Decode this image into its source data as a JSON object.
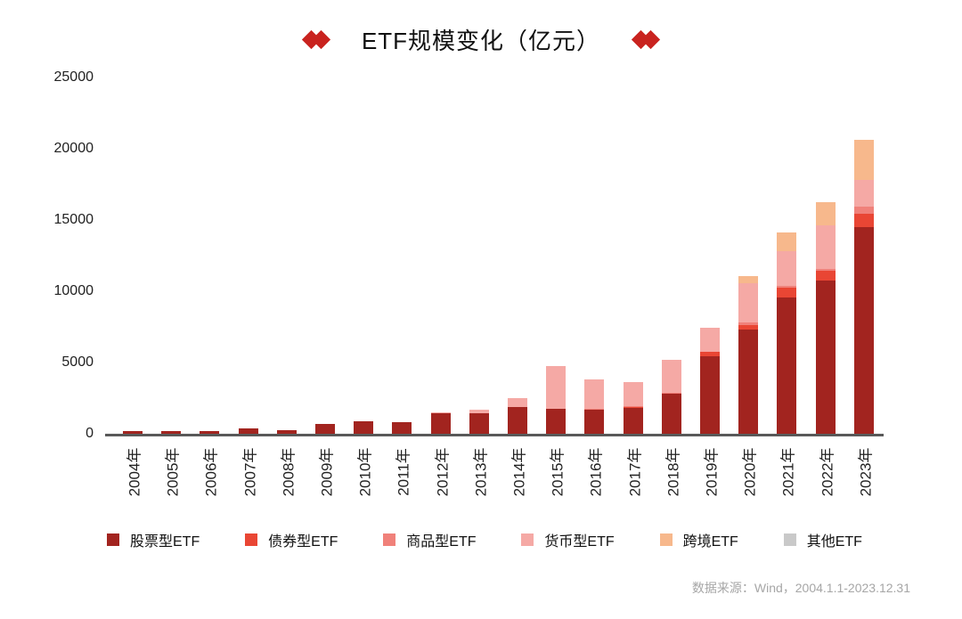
{
  "title": {
    "text": "ETF规模变化（亿元）"
  },
  "colors": {
    "diamond_accent": "#c9231f",
    "axis_line": "#595959",
    "tick_text": "#222222",
    "footer_text": "#a6a6a6",
    "background": "#ffffff"
  },
  "chart_data": {
    "type": "bar",
    "stacked": true,
    "title": "ETF规模变化（亿元）",
    "unit": "亿元",
    "xlabel": "",
    "ylabel": "",
    "ylim": [
      0,
      25000
    ],
    "yticks": [
      0,
      5000,
      10000,
      15000,
      20000,
      25000
    ],
    "grid": false,
    "legend_position": "bottom",
    "categories": [
      "2004年",
      "2005年",
      "2006年",
      "2007年",
      "2008年",
      "2009年",
      "2010年",
      "2011年",
      "2012年",
      "2013年",
      "2014年",
      "2015年",
      "2016年",
      "2017年",
      "2018年",
      "2019年",
      "2020年",
      "2021年",
      "2022年",
      "2023年"
    ],
    "series": [
      {
        "name": "股票型ETF",
        "color": "#a2241f",
        "values": [
          170,
          210,
          170,
          395,
          250,
          665,
          850,
          800,
          1450,
          1450,
          1900,
          1750,
          1750,
          1875,
          2810,
          5440,
          7310,
          9560,
          10750,
          14500
        ]
      },
      {
        "name": "债券型ETF",
        "color": "#e94634",
        "values": [
          0,
          0,
          0,
          0,
          0,
          0,
          0,
          0,
          0,
          0,
          0,
          0,
          0,
          30,
          60,
          310,
          300,
          690,
          690,
          940
        ]
      },
      {
        "name": "商品型ETF",
        "color": "#f0817a",
        "values": [
          0,
          0,
          0,
          0,
          0,
          0,
          0,
          0,
          0,
          0,
          0,
          0,
          30,
          30,
          30,
          0,
          200,
          100,
          100,
          500
        ]
      },
      {
        "name": "货币型ETF",
        "color": "#f5a9a5",
        "values": [
          0,
          0,
          0,
          0,
          0,
          0,
          0,
          0,
          50,
          250,
          600,
          3000,
          2030,
          1720,
          2290,
          1690,
          2750,
          2460,
          3090,
          1875
        ]
      },
      {
        "name": "跨境ETF",
        "color": "#f7b88c",
        "values": [
          0,
          0,
          0,
          0,
          0,
          0,
          0,
          0,
          0,
          0,
          0,
          0,
          0,
          0,
          0,
          0,
          500,
          1310,
          1625,
          2810
        ]
      },
      {
        "name": "其他ETF",
        "color": "#c9c9c9",
        "values": [
          0,
          0,
          0,
          0,
          0,
          0,
          0,
          0,
          0,
          0,
          0,
          0,
          0,
          0,
          0,
          0,
          0,
          0,
          0,
          0
        ]
      }
    ]
  },
  "footer": {
    "source": "数据来源：Wind，2004.1.1-2023.12.31"
  }
}
